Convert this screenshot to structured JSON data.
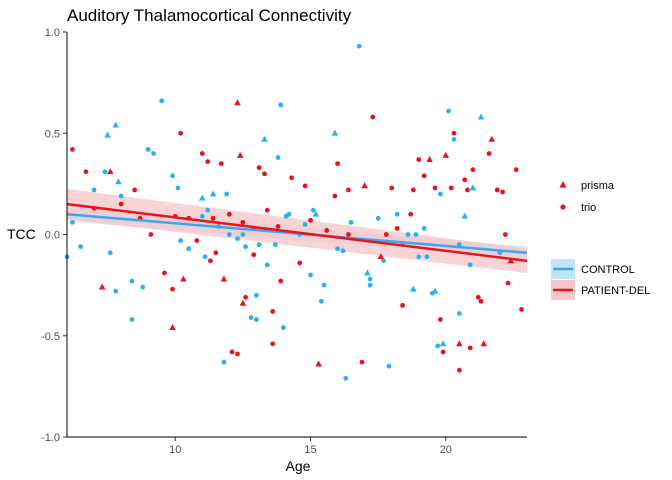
{
  "chart_data": {
    "type": "scatter",
    "title": "Auditory Thalamocortical Connectivity",
    "xlabel": "Age",
    "ylabel": "TCC",
    "xlim": [
      6.0,
      23.0
    ],
    "ylim": [
      -1.0,
      1.0
    ],
    "xticks": [
      "10",
      "15",
      "20"
    ],
    "yticks": [
      "-1.0",
      "-0.5",
      "0.0",
      "0.5",
      "1.0"
    ],
    "grid": false,
    "legend_shape": {
      "title": "",
      "placement": "right",
      "entries": [
        {
          "label": "prisma",
          "shape": "triangle"
        },
        {
          "label": "trio",
          "shape": "circle"
        }
      ]
    },
    "legend_group": {
      "title": "",
      "placement": "right",
      "entries": [
        {
          "label": "CONTROL",
          "color": "#29b0f5"
        },
        {
          "label": "PATIENT-DEL",
          "color": "#e8141b"
        }
      ]
    },
    "colors": {
      "CONTROL": "#29b0f5",
      "PATIENT-DEL": "#e8141b",
      "CONTROL_band": "#bfe6f8",
      "PATIENT_band": "#f7c6c8",
      "CONTROL_line": "#3ea5ec",
      "PATIENT_line": "#e8141b"
    },
    "fits": [
      {
        "group": "CONTROL",
        "x": [
          6.0,
          23.0
        ],
        "y": [
          0.1,
          -0.09
        ],
        "band_halfwidth": [
          0.035,
          0.03
        ]
      },
      {
        "group": "PATIENT-DEL",
        "x": [
          6.0,
          23.0
        ],
        "y": [
          0.15,
          -0.13
        ],
        "band_halfwidth": [
          0.075,
          0.06
        ]
      }
    ],
    "series": [
      {
        "group": "CONTROL",
        "points": [
          {
            "x": 6.0,
            "y": -0.11,
            "shape": "circle"
          },
          {
            "x": 6.2,
            "y": 0.06,
            "shape": "circle"
          },
          {
            "x": 6.5,
            "y": -0.06,
            "shape": "circle"
          },
          {
            "x": 7.0,
            "y": 0.22,
            "shape": "circle"
          },
          {
            "x": 7.4,
            "y": 0.31,
            "shape": "circle"
          },
          {
            "x": 7.5,
            "y": 0.49,
            "shape": "triangle"
          },
          {
            "x": 7.8,
            "y": 0.54,
            "shape": "triangle"
          },
          {
            "x": 7.6,
            "y": -0.09,
            "shape": "circle"
          },
          {
            "x": 7.8,
            "y": -0.28,
            "shape": "circle"
          },
          {
            "x": 7.9,
            "y": 0.26,
            "shape": "triangle"
          },
          {
            "x": 8.0,
            "y": 0.19,
            "shape": "circle"
          },
          {
            "x": 8.4,
            "y": -0.23,
            "shape": "circle"
          },
          {
            "x": 8.8,
            "y": -0.26,
            "shape": "circle"
          },
          {
            "x": 8.4,
            "y": -0.42,
            "shape": "circle"
          },
          {
            "x": 9.0,
            "y": 0.42,
            "shape": "circle"
          },
          {
            "x": 9.2,
            "y": 0.4,
            "shape": "circle"
          },
          {
            "x": 9.5,
            "y": 0.66,
            "shape": "circle"
          },
          {
            "x": 9.9,
            "y": 0.29,
            "shape": "circle"
          },
          {
            "x": 10.1,
            "y": 0.23,
            "shape": "circle"
          },
          {
            "x": 10.2,
            "y": -0.03,
            "shape": "circle"
          },
          {
            "x": 10.5,
            "y": -0.07,
            "shape": "circle"
          },
          {
            "x": 11.0,
            "y": 0.09,
            "shape": "circle"
          },
          {
            "x": 11.0,
            "y": 0.18,
            "shape": "triangle"
          },
          {
            "x": 11.2,
            "y": 0.12,
            "shape": "circle"
          },
          {
            "x": 11.4,
            "y": 0.2,
            "shape": "triangle"
          },
          {
            "x": 11.1,
            "y": -0.11,
            "shape": "circle"
          },
          {
            "x": 11.6,
            "y": 0.04,
            "shape": "circle"
          },
          {
            "x": 11.9,
            "y": 0.2,
            "shape": "circle"
          },
          {
            "x": 12.0,
            "y": 0.0,
            "shape": "circle"
          },
          {
            "x": 11.8,
            "y": -0.63,
            "shape": "circle"
          },
          {
            "x": 12.3,
            "y": -0.02,
            "shape": "circle"
          },
          {
            "x": 12.5,
            "y": 0.0,
            "shape": "circle"
          },
          {
            "x": 12.6,
            "y": -0.06,
            "shape": "circle"
          },
          {
            "x": 12.8,
            "y": -0.41,
            "shape": "circle"
          },
          {
            "x": 13.0,
            "y": -0.42,
            "shape": "circle"
          },
          {
            "x": 13.0,
            "y": -0.3,
            "shape": "circle"
          },
          {
            "x": 13.1,
            "y": -0.05,
            "shape": "circle"
          },
          {
            "x": 13.3,
            "y": 0.47,
            "shape": "triangle"
          },
          {
            "x": 13.4,
            "y": -0.15,
            "shape": "circle"
          },
          {
            "x": 13.7,
            "y": -0.05,
            "shape": "circle"
          },
          {
            "x": 13.8,
            "y": 0.38,
            "shape": "circle"
          },
          {
            "x": 13.9,
            "y": 0.64,
            "shape": "circle"
          },
          {
            "x": 14.0,
            "y": -0.46,
            "shape": "circle"
          },
          {
            "x": 14.1,
            "y": 0.09,
            "shape": "circle"
          },
          {
            "x": 14.2,
            "y": 0.1,
            "shape": "circle"
          },
          {
            "x": 14.6,
            "y": 0.0,
            "shape": "circle"
          },
          {
            "x": 14.8,
            "y": 0.05,
            "shape": "circle"
          },
          {
            "x": 15.0,
            "y": -0.2,
            "shape": "circle"
          },
          {
            "x": 15.1,
            "y": 0.12,
            "shape": "circle"
          },
          {
            "x": 15.2,
            "y": 0.1,
            "shape": "triangle"
          },
          {
            "x": 15.4,
            "y": -0.33,
            "shape": "circle"
          },
          {
            "x": 15.5,
            "y": -0.25,
            "shape": "circle"
          },
          {
            "x": 15.9,
            "y": 0.5,
            "shape": "triangle"
          },
          {
            "x": 16.0,
            "y": -0.07,
            "shape": "circle"
          },
          {
            "x": 16.2,
            "y": -0.08,
            "shape": "circle"
          },
          {
            "x": 16.3,
            "y": -0.71,
            "shape": "circle"
          },
          {
            "x": 16.5,
            "y": 0.06,
            "shape": "circle"
          },
          {
            "x": 16.8,
            "y": 0.93,
            "shape": "circle"
          },
          {
            "x": 17.1,
            "y": -0.19,
            "shape": "triangle"
          },
          {
            "x": 17.2,
            "y": -0.22,
            "shape": "circle"
          },
          {
            "x": 17.2,
            "y": -0.25,
            "shape": "circle"
          },
          {
            "x": 17.5,
            "y": 0.08,
            "shape": "circle"
          },
          {
            "x": 17.7,
            "y": -0.13,
            "shape": "circle"
          },
          {
            "x": 17.9,
            "y": -0.65,
            "shape": "circle"
          },
          {
            "x": 18.2,
            "y": 0.1,
            "shape": "circle"
          },
          {
            "x": 18.4,
            "y": -0.05,
            "shape": "circle"
          },
          {
            "x": 18.6,
            "y": 0.0,
            "shape": "circle"
          },
          {
            "x": 18.8,
            "y": -0.27,
            "shape": "triangle"
          },
          {
            "x": 18.9,
            "y": 0.0,
            "shape": "circle"
          },
          {
            "x": 19.0,
            "y": -0.11,
            "shape": "circle"
          },
          {
            "x": 19.2,
            "y": 0.03,
            "shape": "circle"
          },
          {
            "x": 19.3,
            "y": -0.11,
            "shape": "circle"
          },
          {
            "x": 19.5,
            "y": -0.29,
            "shape": "circle"
          },
          {
            "x": 19.6,
            "y": -0.28,
            "shape": "triangle"
          },
          {
            "x": 19.7,
            "y": -0.55,
            "shape": "circle"
          },
          {
            "x": 19.8,
            "y": 0.2,
            "shape": "circle"
          },
          {
            "x": 19.9,
            "y": -0.54,
            "shape": "triangle"
          },
          {
            "x": 20.1,
            "y": 0.61,
            "shape": "circle"
          },
          {
            "x": 20.3,
            "y": 0.47,
            "shape": "circle"
          },
          {
            "x": 20.5,
            "y": -0.39,
            "shape": "circle"
          },
          {
            "x": 20.5,
            "y": -0.05,
            "shape": "circle"
          },
          {
            "x": 20.7,
            "y": 0.09,
            "shape": "triangle"
          },
          {
            "x": 20.9,
            "y": -0.15,
            "shape": "circle"
          },
          {
            "x": 21.0,
            "y": 0.23,
            "shape": "triangle"
          },
          {
            "x": 21.3,
            "y": 0.58,
            "shape": "triangle"
          },
          {
            "x": 22.0,
            "y": -0.09,
            "shape": "circle"
          }
        ]
      },
      {
        "group": "PATIENT-DEL",
        "points": [
          {
            "x": 6.2,
            "y": 0.42,
            "shape": "circle"
          },
          {
            "x": 6.7,
            "y": 0.31,
            "shape": "circle"
          },
          {
            "x": 7.0,
            "y": 0.13,
            "shape": "circle"
          },
          {
            "x": 7.3,
            "y": -0.26,
            "shape": "triangle"
          },
          {
            "x": 7.6,
            "y": 0.31,
            "shape": "triangle"
          },
          {
            "x": 8.0,
            "y": 0.15,
            "shape": "circle"
          },
          {
            "x": 8.5,
            "y": 0.22,
            "shape": "circle"
          },
          {
            "x": 8.7,
            "y": 0.08,
            "shape": "circle"
          },
          {
            "x": 9.1,
            "y": 0.0,
            "shape": "circle"
          },
          {
            "x": 9.6,
            "y": -0.19,
            "shape": "circle"
          },
          {
            "x": 10.0,
            "y": 0.09,
            "shape": "circle"
          },
          {
            "x": 9.9,
            "y": -0.27,
            "shape": "circle"
          },
          {
            "x": 9.9,
            "y": -0.46,
            "shape": "triangle"
          },
          {
            "x": 10.2,
            "y": 0.5,
            "shape": "circle"
          },
          {
            "x": 10.3,
            "y": -0.22,
            "shape": "triangle"
          },
          {
            "x": 10.5,
            "y": 0.08,
            "shape": "circle"
          },
          {
            "x": 10.8,
            "y": -0.03,
            "shape": "circle"
          },
          {
            "x": 11.0,
            "y": 0.4,
            "shape": "circle"
          },
          {
            "x": 11.2,
            "y": 0.36,
            "shape": "circle"
          },
          {
            "x": 11.3,
            "y": -0.13,
            "shape": "circle"
          },
          {
            "x": 11.5,
            "y": -0.09,
            "shape": "circle"
          },
          {
            "x": 11.4,
            "y": 0.08,
            "shape": "circle"
          },
          {
            "x": 11.7,
            "y": 0.35,
            "shape": "circle"
          },
          {
            "x": 11.8,
            "y": -0.22,
            "shape": "triangle"
          },
          {
            "x": 12.0,
            "y": 0.1,
            "shape": "circle"
          },
          {
            "x": 12.1,
            "y": -0.58,
            "shape": "circle"
          },
          {
            "x": 12.3,
            "y": -0.59,
            "shape": "circle"
          },
          {
            "x": 12.3,
            "y": 0.65,
            "shape": "triangle"
          },
          {
            "x": 12.4,
            "y": 0.39,
            "shape": "triangle"
          },
          {
            "x": 12.5,
            "y": 0.06,
            "shape": "circle"
          },
          {
            "x": 12.5,
            "y": -0.34,
            "shape": "triangle"
          },
          {
            "x": 12.6,
            "y": -0.31,
            "shape": "circle"
          },
          {
            "x": 12.9,
            "y": 0.03,
            "shape": "circle"
          },
          {
            "x": 12.9,
            "y": -0.1,
            "shape": "circle"
          },
          {
            "x": 13.1,
            "y": 0.33,
            "shape": "circle"
          },
          {
            "x": 13.3,
            "y": 0.3,
            "shape": "circle"
          },
          {
            "x": 13.4,
            "y": 0.12,
            "shape": "circle"
          },
          {
            "x": 13.6,
            "y": -0.54,
            "shape": "circle"
          },
          {
            "x": 13.6,
            "y": -0.38,
            "shape": "circle"
          },
          {
            "x": 13.8,
            "y": 0.04,
            "shape": "circle"
          },
          {
            "x": 13.9,
            "y": -0.23,
            "shape": "circle"
          },
          {
            "x": 14.3,
            "y": 0.28,
            "shape": "circle"
          },
          {
            "x": 14.6,
            "y": -0.14,
            "shape": "circle"
          },
          {
            "x": 14.8,
            "y": 0.24,
            "shape": "circle"
          },
          {
            "x": 15.0,
            "y": 0.07,
            "shape": "circle"
          },
          {
            "x": 15.3,
            "y": -0.64,
            "shape": "triangle"
          },
          {
            "x": 15.6,
            "y": 0.02,
            "shape": "circle"
          },
          {
            "x": 15.9,
            "y": 0.19,
            "shape": "circle"
          },
          {
            "x": 16.0,
            "y": 0.35,
            "shape": "circle"
          },
          {
            "x": 16.4,
            "y": 0.22,
            "shape": "circle"
          },
          {
            "x": 16.4,
            "y": 0.0,
            "shape": "circle"
          },
          {
            "x": 16.9,
            "y": -0.63,
            "shape": "circle"
          },
          {
            "x": 17.0,
            "y": 0.24,
            "shape": "triangle"
          },
          {
            "x": 17.3,
            "y": 0.58,
            "shape": "circle"
          },
          {
            "x": 17.6,
            "y": -0.11,
            "shape": "triangle"
          },
          {
            "x": 17.8,
            "y": 0.0,
            "shape": "circle"
          },
          {
            "x": 18.0,
            "y": 0.23,
            "shape": "circle"
          },
          {
            "x": 18.2,
            "y": 0.03,
            "shape": "circle"
          },
          {
            "x": 18.4,
            "y": -0.35,
            "shape": "circle"
          },
          {
            "x": 18.7,
            "y": 0.1,
            "shape": "circle"
          },
          {
            "x": 18.8,
            "y": 0.22,
            "shape": "circle"
          },
          {
            "x": 19.0,
            "y": 0.37,
            "shape": "circle"
          },
          {
            "x": 19.2,
            "y": 0.29,
            "shape": "circle"
          },
          {
            "x": 19.4,
            "y": 0.37,
            "shape": "triangle"
          },
          {
            "x": 19.6,
            "y": 0.23,
            "shape": "circle"
          },
          {
            "x": 19.8,
            "y": -0.42,
            "shape": "circle"
          },
          {
            "x": 19.9,
            "y": -0.58,
            "shape": "circle"
          },
          {
            "x": 20.0,
            "y": 0.39,
            "shape": "triangle"
          },
          {
            "x": 20.2,
            "y": 0.23,
            "shape": "circle"
          },
          {
            "x": 20.3,
            "y": 0.5,
            "shape": "circle"
          },
          {
            "x": 20.5,
            "y": -0.54,
            "shape": "triangle"
          },
          {
            "x": 20.5,
            "y": -0.67,
            "shape": "circle"
          },
          {
            "x": 20.7,
            "y": 0.27,
            "shape": "circle"
          },
          {
            "x": 20.8,
            "y": 0.22,
            "shape": "circle"
          },
          {
            "x": 20.9,
            "y": -0.56,
            "shape": "circle"
          },
          {
            "x": 21.0,
            "y": 0.32,
            "shape": "circle"
          },
          {
            "x": 21.2,
            "y": -0.31,
            "shape": "circle"
          },
          {
            "x": 21.3,
            "y": -0.33,
            "shape": "circle"
          },
          {
            "x": 21.4,
            "y": -0.54,
            "shape": "triangle"
          },
          {
            "x": 21.6,
            "y": 0.4,
            "shape": "circle"
          },
          {
            "x": 21.7,
            "y": 0.47,
            "shape": "triangle"
          },
          {
            "x": 21.9,
            "y": 0.22,
            "shape": "circle"
          },
          {
            "x": 22.1,
            "y": 0.21,
            "shape": "circle"
          },
          {
            "x": 22.2,
            "y": 0.0,
            "shape": "circle"
          },
          {
            "x": 22.3,
            "y": -0.24,
            "shape": "circle"
          },
          {
            "x": 22.4,
            "y": -0.13,
            "shape": "triangle"
          },
          {
            "x": 22.6,
            "y": 0.32,
            "shape": "circle"
          },
          {
            "x": 22.8,
            "y": -0.37,
            "shape": "circle"
          }
        ]
      }
    ]
  }
}
